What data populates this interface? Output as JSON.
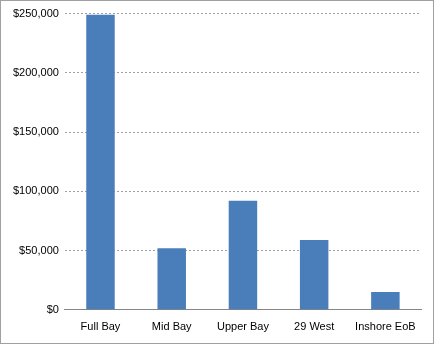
{
  "chart_data": {
    "type": "bar",
    "categories": [
      "Full Bay",
      "Mid Bay",
      "Upper Bay",
      "29 West",
      "Inshore EoB"
    ],
    "values": [
      249000,
      52000,
      92000,
      59000,
      15000
    ],
    "color": "#4a7ebb",
    "ylim": [
      0,
      250000
    ],
    "yticks": [
      {
        "value": 0,
        "label": "$0"
      },
      {
        "value": 50000,
        "label": "$50,000"
      },
      {
        "value": 100000,
        "label": "$100,000"
      },
      {
        "value": 150000,
        "label": "$150,000"
      },
      {
        "value": 200000,
        "label": "$200,000"
      },
      {
        "value": 250000,
        "label": "$250,000"
      }
    ],
    "grid": true
  }
}
